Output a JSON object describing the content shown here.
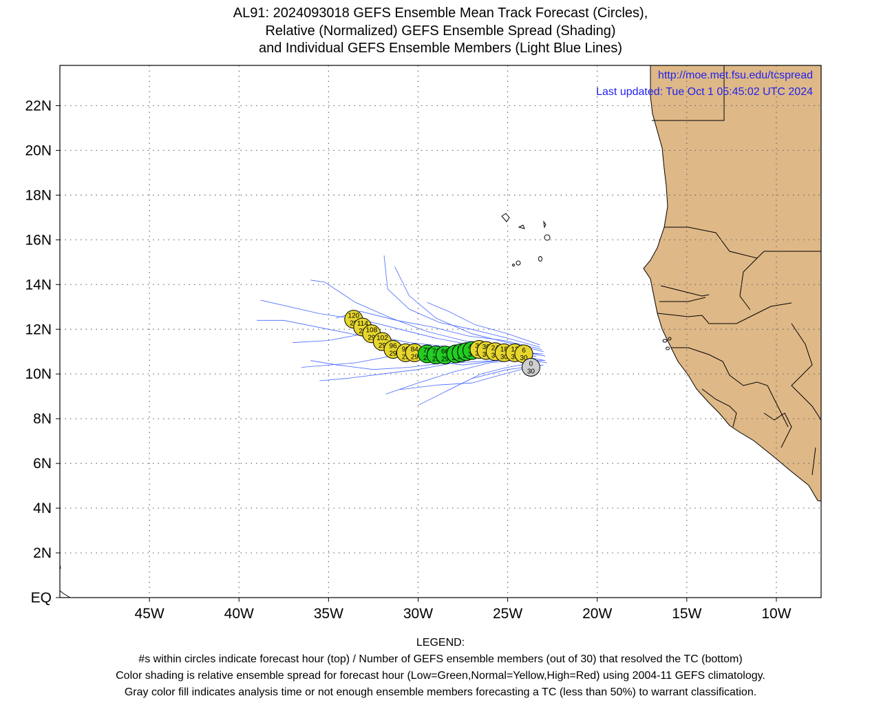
{
  "title": {
    "line1": "AL91: 2024093018 GEFS Ensemble Mean Track Forecast (Circles),",
    "line2": "Relative (Normalized) GEFS Ensemble Spread (Shading)",
    "line3": "and Individual GEFS Ensemble Members (Light Blue Lines)"
  },
  "credits": {
    "url": "http://moe.met.fsu.edu/tcspread",
    "updated": "Last updated: Tue Oct  1 05:45:02 UTC 2024"
  },
  "axes": {
    "lat_ticks": [
      "22N",
      "20N",
      "18N",
      "16N",
      "14N",
      "12N",
      "10N",
      "8N",
      "6N",
      "4N",
      "2N",
      "EQ"
    ],
    "lon_ticks": [
      "45W",
      "40W",
      "35W",
      "30W",
      "25W",
      "20W",
      "15W",
      "10W"
    ],
    "lon_range": [
      -50,
      -7.5
    ],
    "lat_range": [
      0,
      23.8
    ],
    "grid": "dotted"
  },
  "colors": {
    "land": "#deb887",
    "low_spread": "#22cc22",
    "normal_spread": "#e6d62e",
    "gray": "#cfcfcf",
    "members": "#4466ff"
  },
  "chart_data": {
    "type": "scatter",
    "track": [
      {
        "hour": "0",
        "members": "30",
        "lon": -23.7,
        "lat": 10.3,
        "spread": "gray"
      },
      {
        "hour": "6",
        "members": "30",
        "lon": -24.1,
        "lat": 10.9,
        "spread": "normal"
      },
      {
        "hour": "12",
        "members": "30",
        "lon": -24.6,
        "lat": 10.95,
        "spread": "normal"
      },
      {
        "hour": "18",
        "members": "30",
        "lon": -25.2,
        "lat": 10.95,
        "spread": "normal"
      },
      {
        "hour": "24",
        "members": "30",
        "lon": -25.7,
        "lat": 11.0,
        "spread": "normal"
      },
      {
        "hour": "30",
        "members": "30",
        "lon": -26.2,
        "lat": 11.05,
        "spread": "normal"
      },
      {
        "hour": "36",
        "members": "30",
        "lon": -26.6,
        "lat": 11.1,
        "spread": "normal"
      },
      {
        "hour": "42",
        "members": "30",
        "lon": -27.0,
        "lat": 11.05,
        "spread": "low"
      },
      {
        "hour": "48",
        "members": "30",
        "lon": -27.3,
        "lat": 11.0,
        "spread": "low"
      },
      {
        "hour": "54",
        "members": "29",
        "lon": -27.6,
        "lat": 10.95,
        "spread": "low"
      },
      {
        "hour": "60",
        "members": "29",
        "lon": -27.9,
        "lat": 10.9,
        "spread": "low"
      },
      {
        "hour": "66",
        "members": "29",
        "lon": -28.5,
        "lat": 10.85,
        "spread": "low"
      },
      {
        "hour": "72",
        "members": "29",
        "lon": -29.0,
        "lat": 10.85,
        "spread": "low"
      },
      {
        "hour": "78",
        "members": "29",
        "lon": -29.5,
        "lat": 10.9,
        "spread": "low"
      },
      {
        "hour": "84",
        "members": "29",
        "lon": -30.2,
        "lat": 10.95,
        "spread": "normal"
      },
      {
        "hour": "90",
        "members": "29",
        "lon": -30.7,
        "lat": 10.95,
        "spread": "normal"
      },
      {
        "hour": "96",
        "members": "29",
        "lon": -31.4,
        "lat": 11.1,
        "spread": "normal"
      },
      {
        "hour": "102",
        "members": "29",
        "lon": -32.0,
        "lat": 11.45,
        "spread": "normal"
      },
      {
        "hour": "108",
        "members": "29",
        "lon": -32.6,
        "lat": 11.8,
        "spread": "normal"
      },
      {
        "hour": "114",
        "members": "29",
        "lon": -33.1,
        "lat": 12.1,
        "spread": "normal"
      },
      {
        "hour": "120",
        "members": "29",
        "lon": -33.6,
        "lat": 12.45,
        "spread": "normal"
      }
    ],
    "member_tracks": [
      [
        [
          -22.8,
          10.5
        ],
        [
          -24.5,
          10.7
        ],
        [
          -26.5,
          10.8
        ],
        [
          -28.5,
          10.5
        ],
        [
          -30.5,
          10.3
        ],
        [
          -32.5,
          10.2
        ],
        [
          -34.5,
          10.4
        ],
        [
          -36.0,
          10.6
        ]
      ],
      [
        [
          -22.9,
          10.8
        ],
        [
          -25.0,
          11.1
        ],
        [
          -27.0,
          11.3
        ],
        [
          -29.0,
          11.6
        ],
        [
          -31.0,
          12.0
        ],
        [
          -33.0,
          12.4
        ],
        [
          -35.5,
          12.7
        ],
        [
          -38.8,
          13.3
        ]
      ],
      [
        [
          -23.0,
          10.4
        ],
        [
          -25.0,
          10.2
        ],
        [
          -27.0,
          9.8
        ],
        [
          -28.5,
          9.2
        ],
        [
          -29.5,
          8.8
        ],
        [
          -30.0,
          8.6
        ]
      ],
      [
        [
          -23.2,
          11.2
        ],
        [
          -25.0,
          11.6
        ],
        [
          -27.0,
          12.0
        ],
        [
          -28.8,
          12.3
        ],
        [
          -30.5,
          12.9
        ],
        [
          -31.7,
          13.8
        ],
        [
          -31.9,
          15.3
        ]
      ],
      [
        [
          -23.0,
          10.6
        ],
        [
          -25.5,
          10.6
        ],
        [
          -28.0,
          10.5
        ],
        [
          -30.0,
          10.2
        ],
        [
          -32.0,
          10.0
        ],
        [
          -34.0,
          9.8
        ],
        [
          -35.5,
          9.7
        ]
      ],
      [
        [
          -23.3,
          10.9
        ],
        [
          -25.5,
          11.2
        ],
        [
          -27.5,
          11.5
        ],
        [
          -29.5,
          11.9
        ],
        [
          -31.5,
          12.5
        ],
        [
          -33.5,
          13.2
        ],
        [
          -35.2,
          14.1
        ],
        [
          -36.0,
          14.2
        ]
      ],
      [
        [
          -23.5,
          10.7
        ],
        [
          -26.0,
          10.5
        ],
        [
          -28.0,
          10.1
        ],
        [
          -30.0,
          9.6
        ],
        [
          -31.8,
          9.1
        ]
      ],
      [
        [
          -23.0,
          11.0
        ],
        [
          -25.0,
          11.4
        ],
        [
          -27.0,
          11.8
        ],
        [
          -29.0,
          12.5
        ],
        [
          -30.5,
          13.5
        ],
        [
          -31.3,
          14.8
        ]
      ],
      [
        [
          -22.9,
          10.6
        ],
        [
          -25.0,
          10.9
        ],
        [
          -27.5,
          10.9
        ],
        [
          -30.0,
          11.0
        ],
        [
          -32.5,
          11.6
        ],
        [
          -35.0,
          12.0
        ],
        [
          -37.5,
          12.4
        ],
        [
          -39.0,
          12.4
        ]
      ],
      [
        [
          -23.6,
          10.5
        ],
        [
          -25.0,
          10.3
        ],
        [
          -26.5,
          10.0
        ],
        [
          -27.5,
          9.6
        ],
        [
          -28.5,
          9.2
        ]
      ],
      [
        [
          -23.2,
          11.3
        ],
        [
          -25.0,
          11.8
        ],
        [
          -26.8,
          12.2
        ],
        [
          -28.3,
          12.8
        ],
        [
          -29.5,
          13.2
        ]
      ],
      [
        [
          -23.0,
          10.9
        ],
        [
          -25.5,
          11.0
        ],
        [
          -28.0,
          11.2
        ],
        [
          -30.5,
          11.4
        ],
        [
          -33.0,
          11.8
        ],
        [
          -35.0,
          11.5
        ],
        [
          -37.0,
          11.4
        ]
      ],
      [
        [
          -23.4,
          10.8
        ],
        [
          -25.5,
          10.6
        ],
        [
          -27.5,
          10.4
        ],
        [
          -29.5,
          10.6
        ],
        [
          -31.5,
          10.8
        ],
        [
          -33.5,
          10.5
        ],
        [
          -36.5,
          10.3
        ]
      ],
      [
        [
          -23.1,
          11.1
        ],
        [
          -25.2,
          11.5
        ],
        [
          -27.2,
          11.7
        ],
        [
          -29.2,
          12.1
        ],
        [
          -31.2,
          12.4
        ],
        [
          -33.2,
          12.8
        ],
        [
          -34.6,
          12.5
        ]
      ],
      [
        [
          -23.3,
          10.4
        ],
        [
          -25.2,
          10.0
        ],
        [
          -27.0,
          9.6
        ],
        [
          -29.0,
          9.5
        ],
        [
          -31.0,
          9.3
        ]
      ]
    ]
  }
}
